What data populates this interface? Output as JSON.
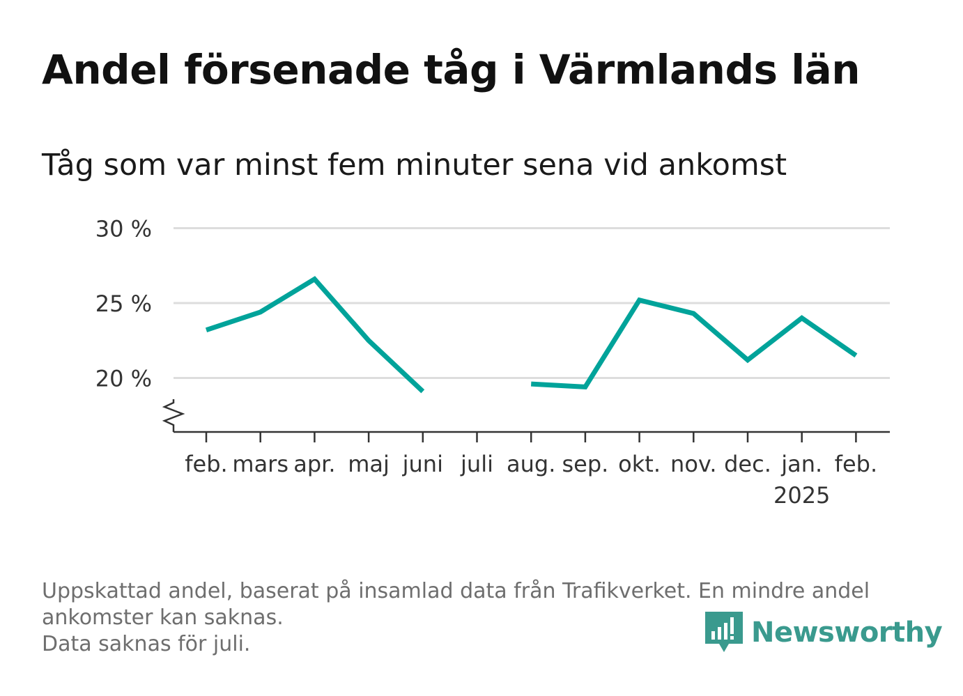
{
  "title": "Andel försenade tåg i Värmlands län",
  "subtitle": "Tåg som var minst fem minuter sena vid ankomst",
  "footnote": {
    "line1": "Uppskattad andel, baserat på insamlad data från Trafikverket. En mindre andel",
    "line2": "ankomster kan saknas.",
    "line3": "Data saknas för juli."
  },
  "logo": {
    "text": "Newsworthy",
    "icon": "newsworthy-logo-icon",
    "color": "#3a9a8e"
  },
  "colors": {
    "line": "#00a39a",
    "grid": "#dddddd",
    "axis": "#333333",
    "tick_text": "#333333"
  },
  "chart_data": {
    "type": "line",
    "title": "Andel försenade tåg i Värmlands län",
    "subtitle": "Tåg som var minst fem minuter sena vid ankomst",
    "categories": [
      "feb.",
      "mars",
      "apr.",
      "maj",
      "juni",
      "juli",
      "aug.",
      "sep.",
      "okt.",
      "nov.",
      "dec.",
      "jan.",
      "feb."
    ],
    "year_labels": [
      "",
      "",
      "",
      "",
      "",
      "",
      "",
      "",
      "",
      "",
      "",
      "2025",
      ""
    ],
    "series": [
      {
        "values": [
          23.2,
          24.4,
          26.6,
          22.5,
          19.1,
          null,
          19.6,
          19.4,
          25.2,
          24.3,
          21.2,
          24.0,
          21.5
        ]
      }
    ],
    "ylim": [
      16.5,
      30
    ],
    "yticks": [
      20,
      25,
      30
    ],
    "ytick_labels": [
      "20 %",
      "25 %",
      "30 %"
    ],
    "y_axis_break": true,
    "grid": true,
    "legend": "none"
  }
}
